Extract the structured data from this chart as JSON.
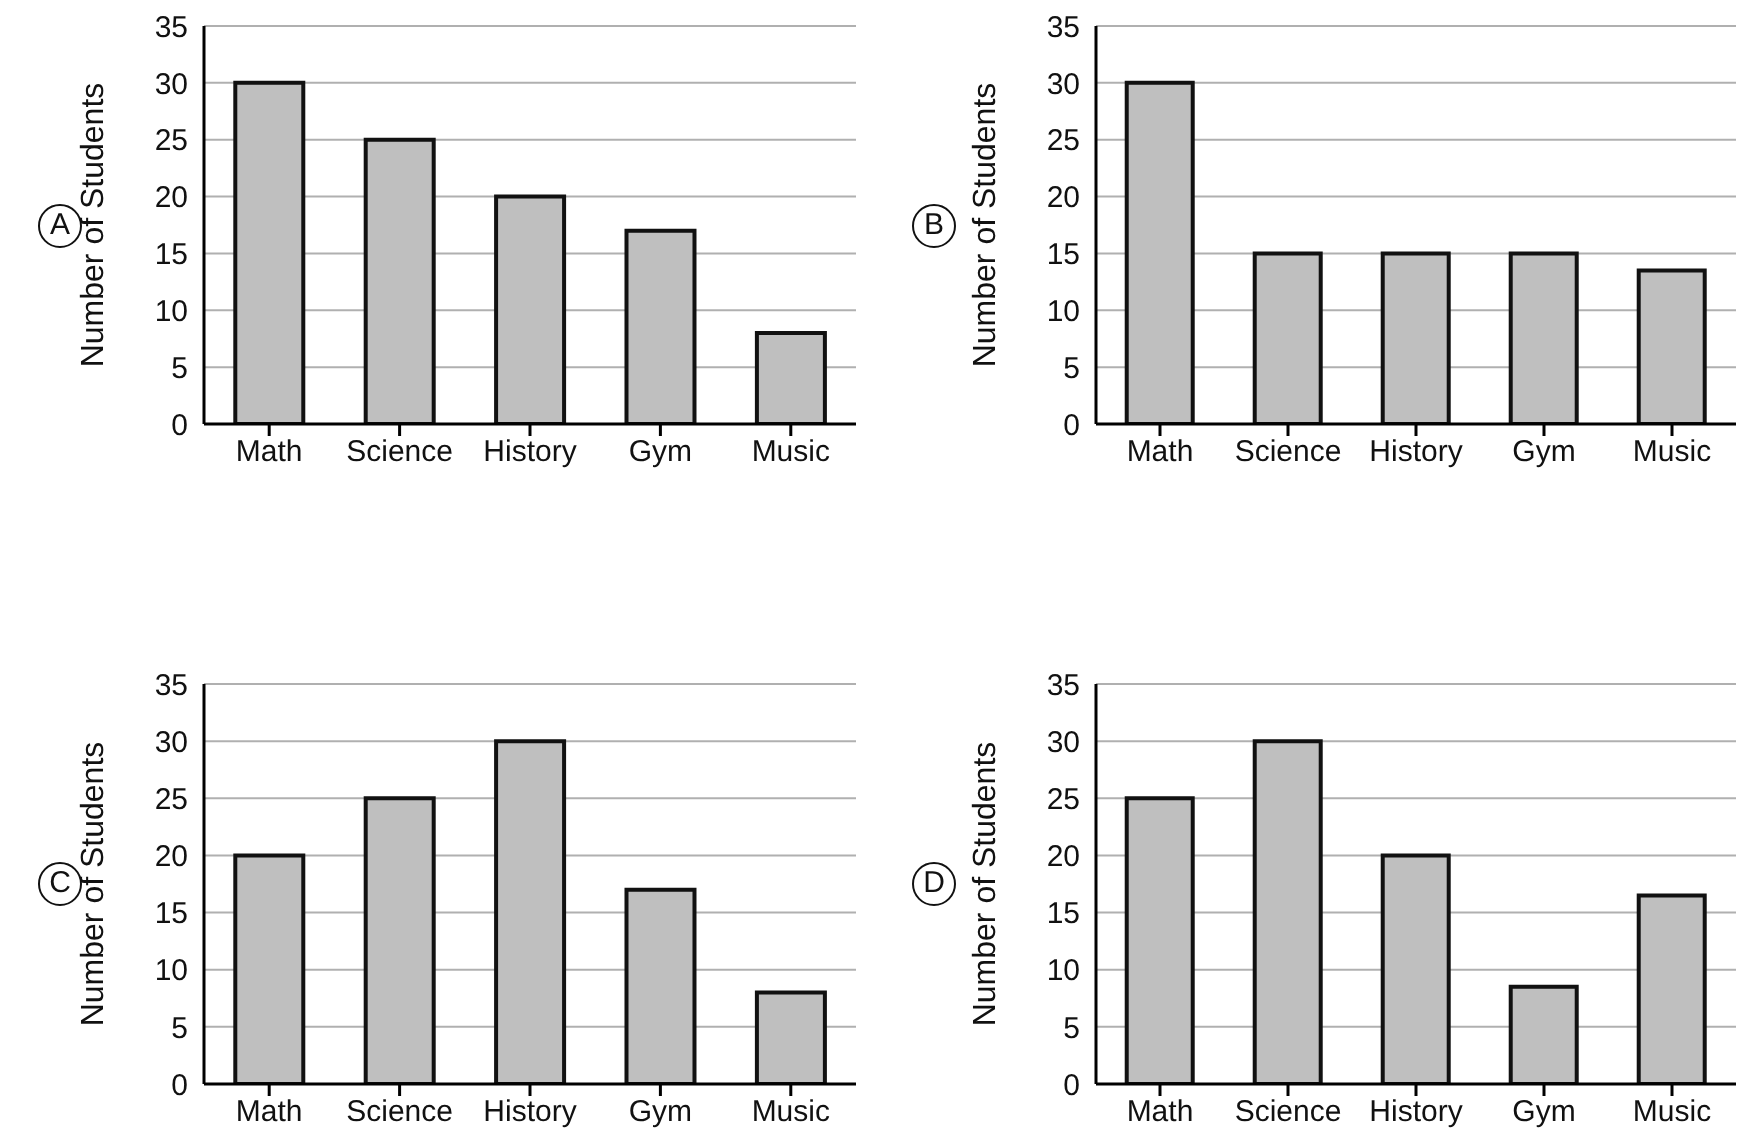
{
  "chart_data": [
    {
      "type": "bar",
      "categories": [
        "Math",
        "Science",
        "History",
        "Gym",
        "Music"
      ],
      "values": [
        30,
        25,
        20,
        17,
        8
      ],
      "color": "#bfbfbf",
      "ylabel": "Number of Students",
      "ylim": [
        0,
        35
      ],
      "yticks": [
        0,
        5,
        10,
        15,
        20,
        25,
        30,
        35
      ],
      "grid": "y",
      "annotations": [
        "A"
      ]
    },
    {
      "type": "bar",
      "categories": [
        "Math",
        "Science",
        "History",
        "Gym",
        "Music"
      ],
      "values": [
        30,
        15,
        15,
        15,
        13.5
      ],
      "color": "#bfbfbf",
      "ylabel": "Number of Students",
      "ylim": [
        0,
        35
      ],
      "yticks": [
        0,
        5,
        10,
        15,
        20,
        25,
        30,
        35
      ],
      "grid": "y",
      "annotations": [
        "B"
      ]
    },
    {
      "type": "bar",
      "categories": [
        "Math",
        "Science",
        "History",
        "Gym",
        "Music"
      ],
      "values": [
        20,
        25,
        30,
        17,
        8
      ],
      "color": "#bfbfbf",
      "ylabel": "Number of Students",
      "ylim": [
        0,
        35
      ],
      "yticks": [
        0,
        5,
        10,
        15,
        20,
        25,
        30,
        35
      ],
      "grid": "y",
      "annotations": [
        "C"
      ]
    },
    {
      "type": "bar",
      "categories": [
        "Math",
        "Science",
        "History",
        "Gym",
        "Music"
      ],
      "values": [
        25,
        30,
        20,
        8.5,
        16.5
      ],
      "color": "#bfbfbf",
      "ylabel": "Number of Students",
      "ylim": [
        0,
        35
      ],
      "yticks": [
        0,
        5,
        10,
        15,
        20,
        25,
        30,
        35
      ],
      "grid": "y",
      "annotations": [
        "D"
      ]
    }
  ]
}
